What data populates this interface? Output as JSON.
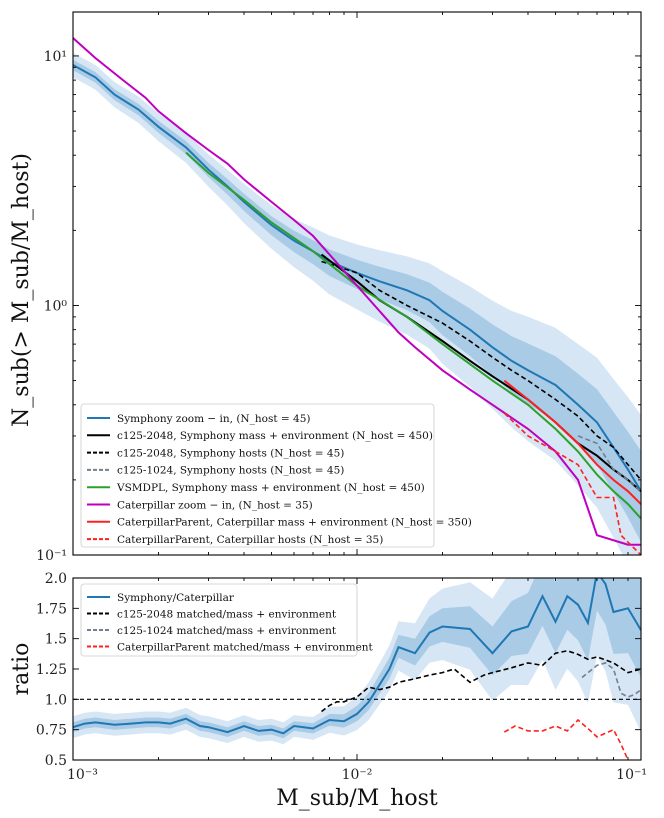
{
  "chart_data": [
    {
      "type": "line",
      "panel": "top",
      "xscale": "log",
      "yscale": "log",
      "xlim": [
        0.001,
        0.1
      ],
      "ylim": [
        0.1,
        15
      ],
      "ylabel": "N_sub(> M_sub/M_host)",
      "y_ticks": [
        {
          "value": 10,
          "label": "10¹"
        },
        {
          "value": 1,
          "label": "10⁰"
        },
        {
          "value": 0.1,
          "label": "10⁻¹"
        }
      ],
      "legend_position": "lower-left",
      "series": [
        {
          "name": "Symphony zoom − in, (N_host = 45)",
          "color": "#1f77b4",
          "dash": "solid",
          "band": true,
          "x": [
            0.001,
            0.0012,
            0.0014,
            0.0017,
            0.002,
            0.0025,
            0.003,
            0.0035,
            0.004,
            0.005,
            0.006,
            0.007,
            0.008,
            0.01,
            0.012,
            0.015,
            0.018,
            0.02,
            0.025,
            0.03,
            0.035,
            0.04,
            0.05,
            0.06,
            0.07,
            0.08,
            0.09,
            0.1
          ],
          "y": [
            9.2,
            8.2,
            7.0,
            6.1,
            5.2,
            4.3,
            3.5,
            3.0,
            2.6,
            2.1,
            1.82,
            1.65,
            1.5,
            1.35,
            1.25,
            1.15,
            1.05,
            0.95,
            0.8,
            0.68,
            0.6,
            0.55,
            0.48,
            0.4,
            0.34,
            0.27,
            0.22,
            0.18
          ]
        },
        {
          "name": "c125-2048, Symphony mass + environment (N_host = 450)",
          "color": "#000000",
          "dash": "solid",
          "x": [
            0.0075,
            0.01,
            0.012,
            0.015,
            0.02,
            0.025,
            0.03,
            0.04,
            0.05,
            0.06,
            0.07,
            0.08,
            0.09,
            0.1
          ],
          "y": [
            1.6,
            1.25,
            1.05,
            0.9,
            0.72,
            0.6,
            0.52,
            0.42,
            0.34,
            0.28,
            0.25,
            0.22,
            0.2,
            0.18
          ]
        },
        {
          "name": "c125-2048, Symphony hosts (N_host = 45)",
          "color": "#000000",
          "dash": "dashed",
          "x": [
            0.0075,
            0.01,
            0.012,
            0.015,
            0.02,
            0.025,
            0.03,
            0.035,
            0.04,
            0.05,
            0.06,
            0.07,
            0.08,
            0.09,
            0.1
          ],
          "y": [
            1.5,
            1.35,
            1.15,
            1.0,
            0.85,
            0.72,
            0.62,
            0.55,
            0.5,
            0.42,
            0.36,
            0.3,
            0.27,
            0.23,
            0.2
          ]
        },
        {
          "name": "c125-1024, Symphony hosts (N_host = 45)",
          "color": "#708090",
          "dash": "dashed",
          "x": [
            0.06,
            0.07,
            0.08,
            0.09,
            0.1
          ],
          "y": [
            0.3,
            0.28,
            0.22,
            0.2,
            0.18
          ]
        },
        {
          "name": "VSMDPL, Symphony mass + environment (N_host = 450)",
          "color": "#2ca02c",
          "dash": "solid",
          "x": [
            0.0025,
            0.003,
            0.004,
            0.005,
            0.007,
            0.01,
            0.015,
            0.02,
            0.03,
            0.04,
            0.05,
            0.06,
            0.07,
            0.08,
            0.09,
            0.1
          ],
          "y": [
            4.1,
            3.4,
            2.65,
            2.15,
            1.65,
            1.2,
            0.9,
            0.7,
            0.5,
            0.4,
            0.32,
            0.26,
            0.21,
            0.18,
            0.16,
            0.14
          ]
        },
        {
          "name": "Caterpillar zoom − in, (N_host = 35)",
          "color": "#bf00bf",
          "dash": "solid",
          "x": [
            0.001,
            0.0012,
            0.0015,
            0.0018,
            0.002,
            0.0025,
            0.003,
            0.0035,
            0.004,
            0.005,
            0.006,
            0.007,
            0.008,
            0.01,
            0.012,
            0.014,
            0.016,
            0.02,
            0.025,
            0.03,
            0.04,
            0.05,
            0.06,
            0.07,
            0.09,
            0.1
          ],
          "y": [
            11.8,
            9.8,
            8.0,
            6.8,
            6.0,
            4.9,
            4.2,
            3.7,
            3.2,
            2.6,
            2.2,
            1.9,
            1.6,
            1.2,
            0.95,
            0.78,
            0.68,
            0.55,
            0.46,
            0.4,
            0.32,
            0.26,
            0.2,
            0.12,
            0.11,
            0.11
          ]
        },
        {
          "name": "CaterpillarParent, Caterpillar mass + environment (N_host = 350)",
          "color": "#ff2020",
          "dash": "solid",
          "x": [
            0.033,
            0.04,
            0.05,
            0.06,
            0.07,
            0.08,
            0.09,
            0.1
          ],
          "y": [
            0.5,
            0.42,
            0.34,
            0.28,
            0.23,
            0.2,
            0.18,
            0.16
          ]
        },
        {
          "name": "CaterpillarParent, Caterpillar hosts (N_host = 35)",
          "color": "#ff2020",
          "dash": "dashed",
          "x": [
            0.033,
            0.04,
            0.05,
            0.06,
            0.07,
            0.08,
            0.085,
            0.1
          ],
          "y": [
            0.37,
            0.3,
            0.26,
            0.23,
            0.17,
            0.17,
            0.12,
            0.1
          ]
        }
      ]
    },
    {
      "type": "line",
      "panel": "bottom",
      "xscale": "log",
      "xlim": [
        0.001,
        0.1
      ],
      "ylim": [
        0.5,
        2.0
      ],
      "xlabel": "M_sub/M_host",
      "ylabel": "ratio",
      "x_ticks": [
        {
          "value": 0.001,
          "label": "10⁻³"
        },
        {
          "value": 0.01,
          "label": "10⁻²"
        },
        {
          "value": 0.1,
          "label": "10⁻¹"
        }
      ],
      "y_ticks": [
        0.5,
        0.75,
        1.0,
        1.25,
        1.5,
        1.75,
        2.0
      ],
      "y_tick_labels": [
        "0.5",
        "0.75",
        "1.0",
        "1.25",
        "1.5",
        "1.75",
        "2.0"
      ],
      "reference_line": 1.0,
      "legend_position": "upper-left",
      "series": [
        {
          "name": "Symphony/Caterpillar",
          "color": "#1f77b4",
          "dash": "solid",
          "band": true,
          "x": [
            0.001,
            0.0011,
            0.0012,
            0.0014,
            0.0016,
            0.0018,
            0.002,
            0.0022,
            0.0025,
            0.0028,
            0.003,
            0.0035,
            0.004,
            0.0045,
            0.005,
            0.0055,
            0.006,
            0.0065,
            0.007,
            0.008,
            0.009,
            0.01,
            0.011,
            0.012,
            0.013,
            0.014,
            0.016,
            0.018,
            0.02,
            0.025,
            0.03,
            0.035,
            0.04,
            0.045,
            0.05,
            0.055,
            0.06,
            0.065,
            0.07,
            0.075,
            0.08,
            0.09,
            0.1
          ],
          "y": [
            0.77,
            0.8,
            0.81,
            0.79,
            0.8,
            0.81,
            0.81,
            0.8,
            0.84,
            0.78,
            0.77,
            0.73,
            0.78,
            0.74,
            0.75,
            0.72,
            0.78,
            0.77,
            0.76,
            0.83,
            0.82,
            0.88,
            0.98,
            1.12,
            1.25,
            1.43,
            1.38,
            1.55,
            1.6,
            1.58,
            1.38,
            1.56,
            1.6,
            1.85,
            1.64,
            1.85,
            1.78,
            1.63,
            2.05,
            1.95,
            1.72,
            1.75,
            1.57
          ]
        },
        {
          "name": "c125-2048 matched/mass + environment",
          "color": "#000000",
          "dash": "dashed",
          "x": [
            0.0075,
            0.008,
            0.0085,
            0.009,
            0.01,
            0.011,
            0.012,
            0.013,
            0.014,
            0.016,
            0.018,
            0.02,
            0.022,
            0.025,
            0.028,
            0.03,
            0.035,
            0.04,
            0.045,
            0.05,
            0.055,
            0.06,
            0.065,
            0.07,
            0.08,
            0.09,
            0.1
          ],
          "y": [
            0.9,
            0.95,
            0.98,
            0.98,
            1.02,
            1.1,
            1.08,
            1.1,
            1.14,
            1.17,
            1.2,
            1.22,
            1.25,
            1.14,
            1.2,
            1.22,
            1.26,
            1.3,
            1.28,
            1.38,
            1.4,
            1.37,
            1.33,
            1.35,
            1.3,
            1.22,
            1.25
          ]
        },
        {
          "name": "c125-1024 matched/mass + environment",
          "color": "#708090",
          "dash": "dashed",
          "x": [
            0.062,
            0.07,
            0.075,
            0.08,
            0.085,
            0.09,
            0.095,
            0.1
          ],
          "y": [
            1.18,
            1.28,
            1.3,
            1.25,
            1.05,
            1.02,
            1.04,
            1.08
          ]
        },
        {
          "name": "CaterpillarParent matched/mass + environment",
          "color": "#ff2020",
          "dash": "dashed",
          "x": [
            0.033,
            0.036,
            0.04,
            0.045,
            0.05,
            0.055,
            0.06,
            0.065,
            0.07,
            0.075,
            0.08,
            0.085,
            0.09
          ],
          "y": [
            0.73,
            0.78,
            0.74,
            0.74,
            0.78,
            0.74,
            0.83,
            0.76,
            0.69,
            0.72,
            0.75,
            0.63,
            0.5
          ]
        }
      ]
    }
  ],
  "top_legend": [
    {
      "label": "Symphony zoom − in, (N_host = 45)",
      "color": "#1f77b4",
      "dash": "solid"
    },
    {
      "label": "c125-2048, Symphony mass + environment (N_host = 450)",
      "color": "#000000",
      "dash": "solid"
    },
    {
      "label": "c125-2048, Symphony hosts (N_host = 45)",
      "color": "#000000",
      "dash": "dashed"
    },
    {
      "label": "c125-1024, Symphony hosts (N_host = 45)",
      "color": "#708090",
      "dash": "dashed"
    },
    {
      "label": "VSMDPL, Symphony mass + environment (N_host = 450)",
      "color": "#2ca02c",
      "dash": "solid"
    },
    {
      "label": "Caterpillar zoom − in, (N_host = 35)",
      "color": "#bf00bf",
      "dash": "solid"
    },
    {
      "label": "CaterpillarParent, Caterpillar mass + environment (N_host = 350)",
      "color": "#ff2020",
      "dash": "solid"
    },
    {
      "label": "CaterpillarParent, Caterpillar hosts (N_host = 35)",
      "color": "#ff2020",
      "dash": "dashed"
    }
  ],
  "bottom_legend": [
    {
      "label": "Symphony/Caterpillar",
      "color": "#1f77b4",
      "dash": "solid"
    },
    {
      "label": "c125-2048 matched/mass + environment",
      "color": "#000000",
      "dash": "dashed"
    },
    {
      "label": "c125-1024 matched/mass + environment",
      "color": "#708090",
      "dash": "dashed"
    },
    {
      "label": "CaterpillarParent matched/mass + environment",
      "color": "#ff2020",
      "dash": "dashed"
    }
  ],
  "colors": {
    "band_outer": "#d6e6f4",
    "band_inner": "#a9cbe6"
  }
}
